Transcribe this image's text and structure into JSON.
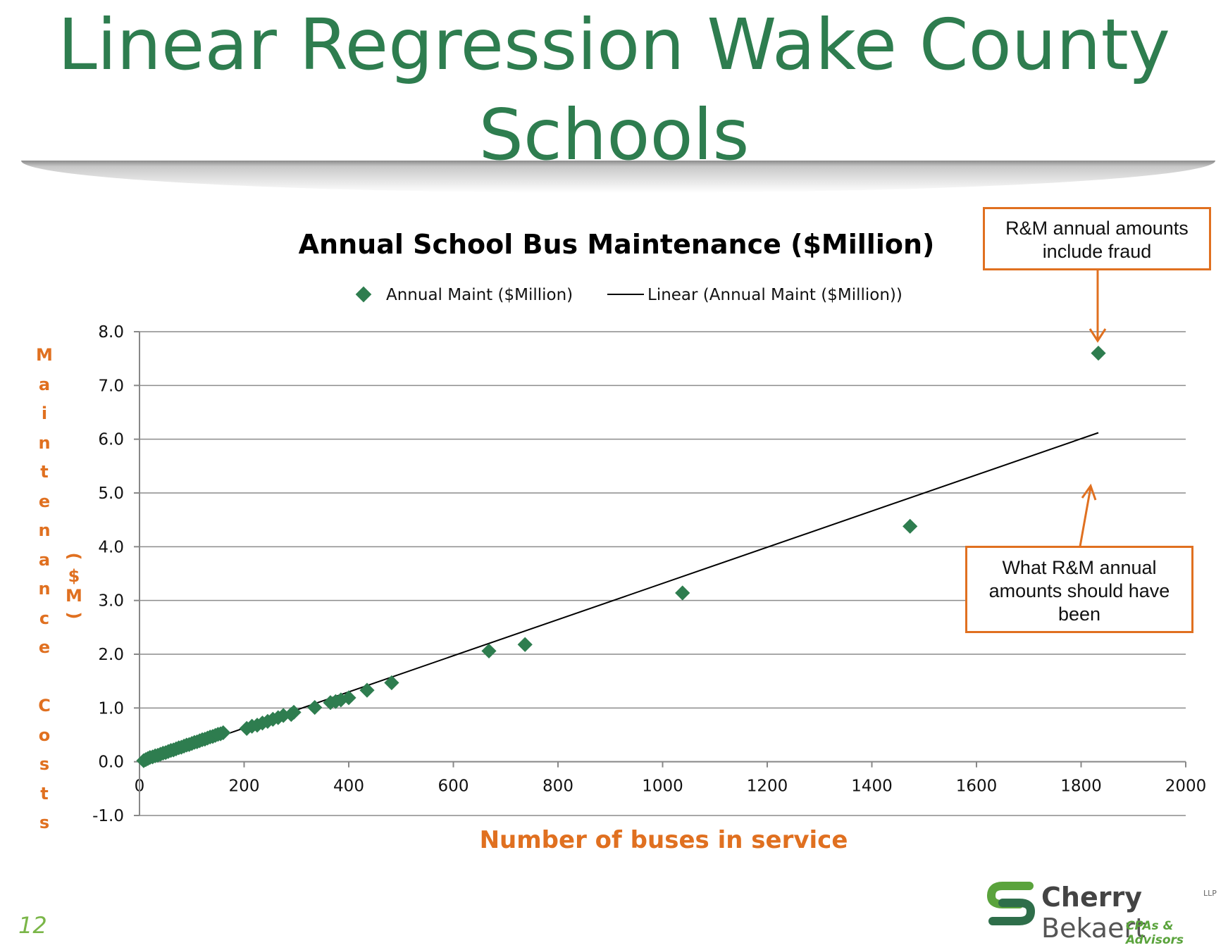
{
  "slide": {
    "title_line1": "Linear Regression Wake County",
    "title_line2": "Schools",
    "page_number": "12"
  },
  "logo": {
    "name_bold": "Cherry",
    "name_light": "Bekaert",
    "suffix": "LLP",
    "tagline": "CPAs & Advisors"
  },
  "callouts": {
    "fraud_line1": "R&M annual amounts",
    "fraud_line2": "include fraud",
    "expected_line1": "What R&M annual",
    "expected_line2": "amounts should have",
    "expected_line3": "been"
  },
  "colors": {
    "title": "#2e7d4f",
    "marker": "#2e7d4f",
    "accent": "#e07020",
    "trendline": "#000000"
  },
  "chart_data": {
    "type": "scatter",
    "title": "Annual School Bus Maintenance ($Million)",
    "xlabel": "Number of buses in service",
    "ylabel_chars": [
      "M",
      "a",
      "i",
      "n",
      "t",
      "e",
      "n",
      "a",
      "n",
      "c",
      "e",
      "",
      "C",
      "o",
      "s",
      "t",
      "s"
    ],
    "ylabel_unit_chars": [
      "(",
      "$",
      "M",
      ")"
    ],
    "xlim": [
      0,
      2000
    ],
    "ylim": [
      -1,
      8
    ],
    "x_ticks": [
      0,
      200,
      400,
      600,
      800,
      1000,
      1200,
      1400,
      1600,
      1800,
      2000
    ],
    "y_ticks": [
      -1.0,
      0.0,
      1.0,
      2.0,
      3.0,
      4.0,
      5.0,
      6.0,
      7.0,
      8.0
    ],
    "grid": "horizontal",
    "legend_position": "top-center",
    "series": [
      {
        "name": "Annual Maint ($Million)",
        "kind": "markers",
        "marker": "diamond",
        "x": [
          8,
          12,
          16,
          20,
          25,
          30,
          35,
          40,
          45,
          50,
          55,
          60,
          65,
          70,
          75,
          80,
          85,
          90,
          95,
          100,
          105,
          110,
          115,
          120,
          125,
          130,
          135,
          140,
          145,
          150,
          155,
          160,
          205,
          215,
          225,
          235,
          245,
          255,
          265,
          275,
          290,
          295,
          335,
          365,
          375,
          385,
          400,
          435,
          482,
          668,
          737,
          1038,
          1473,
          1833
        ],
        "y": [
          0.02,
          0.04,
          0.06,
          0.08,
          0.09,
          0.11,
          0.12,
          0.14,
          0.16,
          0.17,
          0.19,
          0.21,
          0.22,
          0.24,
          0.26,
          0.27,
          0.29,
          0.31,
          0.32,
          0.34,
          0.36,
          0.37,
          0.39,
          0.41,
          0.42,
          0.44,
          0.46,
          0.47,
          0.49,
          0.51,
          0.52,
          0.54,
          0.62,
          0.66,
          0.68,
          0.72,
          0.75,
          0.79,
          0.82,
          0.86,
          0.88,
          0.92,
          1.01,
          1.1,
          1.12,
          1.15,
          1.19,
          1.33,
          1.47,
          2.06,
          2.18,
          3.14,
          4.38,
          7.6
        ]
      },
      {
        "name": "Linear (Annual Maint ($Million))",
        "kind": "line",
        "x": [
          8,
          1833
        ],
        "y": [
          -0.02,
          6.12
        ]
      }
    ]
  }
}
